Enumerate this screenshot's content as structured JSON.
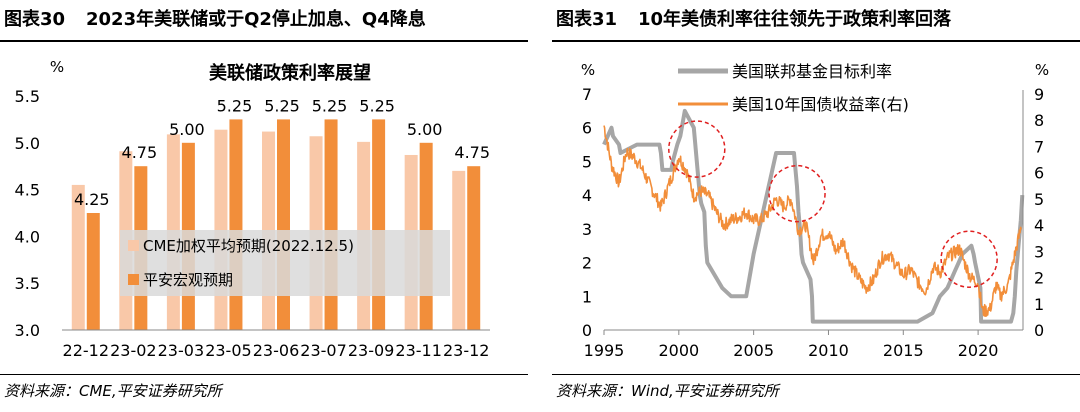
{
  "left": {
    "figure_no": "图表30",
    "title": "2023年美联储或于Q2停止加息、Q4降息",
    "source": "资料来源：CME,平安证券研究所",
    "chart_data": {
      "type": "bar",
      "title": "美联储政策利率展望",
      "ylabel": "%",
      "ylim": [
        3.0,
        5.5
      ],
      "yticks": [
        "3.0",
        "3.5",
        "4.0",
        "4.5",
        "5.0",
        "5.5"
      ],
      "categories": [
        "22-12",
        "23-02",
        "23-03",
        "23-05",
        "23-06",
        "23-07",
        "23-09",
        "23-11",
        "23-12"
      ],
      "data_labels": [
        "4.25",
        "4.75",
        "5.00",
        "5.25",
        "5.25",
        "5.25",
        "5.25",
        "5.00",
        "4.75"
      ],
      "series": [
        {
          "name": "CME加权平均预期(2022.12.5)",
          "color": "#f9c8a8",
          "values": [
            4.55,
            4.91,
            5.09,
            5.14,
            5.12,
            5.07,
            5.01,
            4.87,
            4.7
          ]
        },
        {
          "name": "平安宏观预期",
          "color": "#f28e3a",
          "values": [
            4.25,
            4.75,
            5.0,
            5.25,
            5.25,
            5.25,
            5.25,
            5.0,
            4.75
          ]
        }
      ],
      "legend_position": "center-right",
      "grid": false
    }
  },
  "right": {
    "figure_no": "图表31",
    "title": "10年美债利率往往领先于政策利率回落",
    "source": "资料来源：Wind,平安证券研究所",
    "chart_data": {
      "type": "line",
      "ylabel_left": "%",
      "ylabel_right": "%",
      "ylim_left": [
        0,
        7
      ],
      "ylim_right": [
        0,
        9
      ],
      "xlim": [
        1995,
        2023
      ],
      "yticks_left": [
        "0",
        "1",
        "2",
        "3",
        "4",
        "5",
        "6",
        "7"
      ],
      "yticks_right": [
        "0",
        "1",
        "2",
        "3",
        "4",
        "5",
        "6",
        "7",
        "8",
        "9"
      ],
      "xticks": [
        "1995",
        "2000",
        "2005",
        "2010",
        "2015",
        "2020"
      ],
      "series": [
        {
          "name": "美国联邦基金目标利率",
          "axis": "left",
          "color": "#a6a6a6",
          "x": [
            1995.0,
            1995.5,
            1995.6,
            1996.0,
            1996.1,
            1997.2,
            1998.7,
            1998.8,
            1998.9,
            1999.5,
            1999.6,
            1999.9,
            2000.1,
            2000.2,
            2000.4,
            2001.0,
            2001.1,
            2001.2,
            2001.3,
            2001.4,
            2001.5,
            2001.7,
            2001.8,
            2001.9,
            2002.9,
            2003.5,
            2004.5,
            2004.7,
            2005.0,
            2005.5,
            2006.0,
            2006.5,
            2007.7,
            2007.8,
            2007.9,
            2008.0,
            2008.1,
            2008.2,
            2008.3,
            2008.8,
            2008.9,
            2008.95,
            2015.95,
            2016.95,
            2017.2,
            2017.45,
            2017.95,
            2018.2,
            2018.45,
            2018.7,
            2018.95,
            2019.55,
            2019.7,
            2019.8,
            2020.15,
            2020.2,
            2022.2,
            2022.35,
            2022.45,
            2022.55,
            2022.7,
            2022.85,
            2022.95
          ],
          "y": [
            5.5,
            6.0,
            5.75,
            5.5,
            5.25,
            5.5,
            5.5,
            5.25,
            4.75,
            4.75,
            5.0,
            5.5,
            5.75,
            6.0,
            6.5,
            6.0,
            5.5,
            5.0,
            4.5,
            4.0,
            3.75,
            3.5,
            2.5,
            2.0,
            1.25,
            1.0,
            1.0,
            1.5,
            2.25,
            3.25,
            4.25,
            5.25,
            5.25,
            4.75,
            4.25,
            3.5,
            3.0,
            2.25,
            2.0,
            1.5,
            1.0,
            0.25,
            0.25,
            0.5,
            0.75,
            1.0,
            1.25,
            1.5,
            1.75,
            2.0,
            2.25,
            2.5,
            2.25,
            2.0,
            1.25,
            0.25,
            0.25,
            0.5,
            1.0,
            1.75,
            2.5,
            3.25,
            4.0
          ]
        },
        {
          "name": "美国10年国债收益率(右)",
          "axis": "right",
          "color": "#f28e3a",
          "x": [
            1995.0,
            1995.5,
            1996.0,
            1996.5,
            1997.0,
            1997.5,
            1998.0,
            1998.8,
            1999.5,
            2000.0,
            2000.5,
            2001.0,
            2001.5,
            2002.0,
            2002.5,
            2003.0,
            2003.5,
            2004.0,
            2004.5,
            2005.0,
            2005.5,
            2006.0,
            2006.5,
            2007.0,
            2007.5,
            2008.0,
            2008.5,
            2009.0,
            2009.5,
            2010.0,
            2010.5,
            2011.0,
            2011.5,
            2012.0,
            2012.5,
            2013.0,
            2013.5,
            2014.0,
            2014.5,
            2015.0,
            2015.5,
            2016.0,
            2016.5,
            2017.0,
            2017.5,
            2018.0,
            2018.8,
            2019.0,
            2019.5,
            2020.0,
            2020.3,
            2020.8,
            2021.2,
            2021.5,
            2022.0,
            2022.5,
            2022.9
          ],
          "y": [
            7.8,
            6.3,
            5.6,
            6.8,
            6.6,
            6.2,
            5.6,
            4.7,
            5.8,
            6.6,
            6.1,
            5.1,
            5.3,
            5.1,
            4.5,
            4.0,
            4.2,
            4.3,
            4.5,
            4.2,
            4.2,
            4.5,
            5.0,
            4.7,
            5.0,
            3.8,
            4.0,
            2.6,
            3.6,
            3.7,
            3.0,
            3.4,
            2.5,
            2.0,
            1.6,
            1.9,
            2.7,
            2.9,
            2.5,
            2.1,
            2.3,
            1.8,
            1.5,
            2.4,
            2.2,
            2.8,
            3.1,
            2.7,
            2.0,
            1.8,
            0.7,
            0.8,
            1.7,
            1.3,
            1.7,
            3.0,
            4.0
          ]
        }
      ],
      "highlight_circles": [
        {
          "x": 2001.2,
          "y_right": 6.9
        },
        {
          "x": 2007.9,
          "y_right": 5.2
        },
        {
          "x": 2019.4,
          "y_right": 2.7
        }
      ],
      "legend_position": "top-center",
      "grid": false
    }
  }
}
